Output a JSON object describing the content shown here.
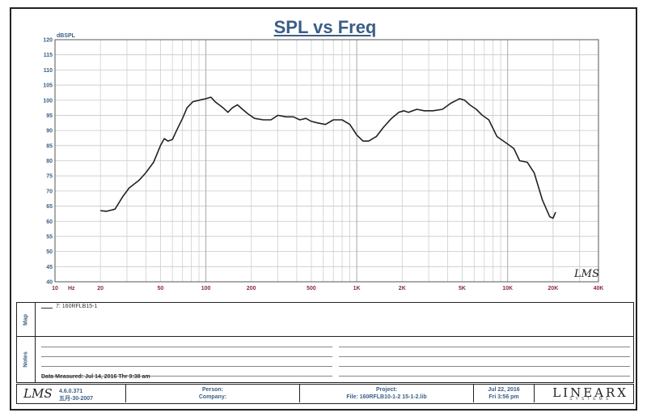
{
  "chart_data": {
    "type": "line",
    "title": "SPL vs Freq",
    "ylabel": "dBSPL",
    "xlabel": "Hz",
    "x_scale": "log",
    "xlim": [
      10,
      40000
    ],
    "ylim": [
      40,
      120
    ],
    "grid": true,
    "y_ticks": [
      40,
      45,
      50,
      55,
      60,
      65,
      70,
      75,
      80,
      85,
      90,
      95,
      100,
      105,
      110,
      115,
      120
    ],
    "x_tick_labels": [
      {
        "value": 10,
        "label": "10"
      },
      {
        "value": 20,
        "label": "20"
      },
      {
        "value": 50,
        "label": "50"
      },
      {
        "value": 100,
        "label": "100"
      },
      {
        "value": 200,
        "label": "200"
      },
      {
        "value": 500,
        "label": "500"
      },
      {
        "value": 1000,
        "label": "1K"
      },
      {
        "value": 2000,
        "label": "2K"
      },
      {
        "value": 5000,
        "label": "5K"
      },
      {
        "value": 10000,
        "label": "10K"
      },
      {
        "value": 20000,
        "label": "20K"
      },
      {
        "value": 40000,
        "label": "40K"
      }
    ],
    "series": [
      {
        "name": "7: 160RFLB15-1",
        "color": "#222222",
        "points": [
          [
            20,
            63.5
          ],
          [
            22,
            63.3
          ],
          [
            25,
            64
          ],
          [
            28,
            68
          ],
          [
            31,
            71
          ],
          [
            36,
            73.5
          ],
          [
            40,
            76
          ],
          [
            45,
            79.5
          ],
          [
            50,
            85
          ],
          [
            53,
            87.3
          ],
          [
            56,
            86.5
          ],
          [
            60,
            87
          ],
          [
            64,
            90
          ],
          [
            70,
            94
          ],
          [
            75,
            97.5
          ],
          [
            82,
            99.5
          ],
          [
            90,
            100
          ],
          [
            100,
            100.5
          ],
          [
            108,
            101
          ],
          [
            115,
            99.5
          ],
          [
            130,
            97.5
          ],
          [
            140,
            96
          ],
          [
            150,
            97.5
          ],
          [
            162,
            98.5
          ],
          [
            175,
            97
          ],
          [
            190,
            95.5
          ],
          [
            210,
            94
          ],
          [
            240,
            93.5
          ],
          [
            270,
            93.5
          ],
          [
            300,
            95
          ],
          [
            340,
            94.5
          ],
          [
            380,
            94.5
          ],
          [
            420,
            93.5
          ],
          [
            460,
            94
          ],
          [
            500,
            93
          ],
          [
            550,
            92.5
          ],
          [
            620,
            92
          ],
          [
            700,
            93.5
          ],
          [
            800,
            93.5
          ],
          [
            900,
            92
          ],
          [
            1000,
            88.5
          ],
          [
            1100,
            86.5
          ],
          [
            1200,
            86.5
          ],
          [
            1350,
            88
          ],
          [
            1500,
            91
          ],
          [
            1700,
            94
          ],
          [
            1900,
            96
          ],
          [
            2050,
            96.5
          ],
          [
            2200,
            96
          ],
          [
            2500,
            97
          ],
          [
            2800,
            96.5
          ],
          [
            3200,
            96.5
          ],
          [
            3700,
            97
          ],
          [
            4200,
            99
          ],
          [
            4800,
            100.5
          ],
          [
            5200,
            100
          ],
          [
            5600,
            98.5
          ],
          [
            6200,
            97
          ],
          [
            6800,
            95
          ],
          [
            7500,
            93.5
          ],
          [
            8500,
            88
          ],
          [
            10000,
            85.5
          ],
          [
            11000,
            84
          ],
          [
            12000,
            80
          ],
          [
            13500,
            79.5
          ],
          [
            15000,
            76
          ],
          [
            17000,
            67
          ],
          [
            19000,
            61.5
          ],
          [
            20000,
            61
          ],
          [
            20800,
            63
          ]
        ]
      }
    ],
    "watermark": "LMS"
  },
  "legend": {
    "entry": "7: 160RFLB15-1"
  },
  "map_label": "Map",
  "notes_label": "Notes",
  "notes": {
    "measured": "Data Measured: Jul 14, 2016  Thr  9:38 am"
  },
  "footer": {
    "logo": "LMS",
    "version": "4.6.0.371",
    "version_date": "五月-30-2007",
    "person": "Person:",
    "company": "Company:",
    "project": "Project:",
    "file": "File: 160RFLB10-1-2 15-1-2.lib",
    "date": "Jul 22, 2016",
    "time": "Fri  3:56 pm",
    "brand": "LINEARX",
    "brand_sub": "SYSTEMS"
  }
}
